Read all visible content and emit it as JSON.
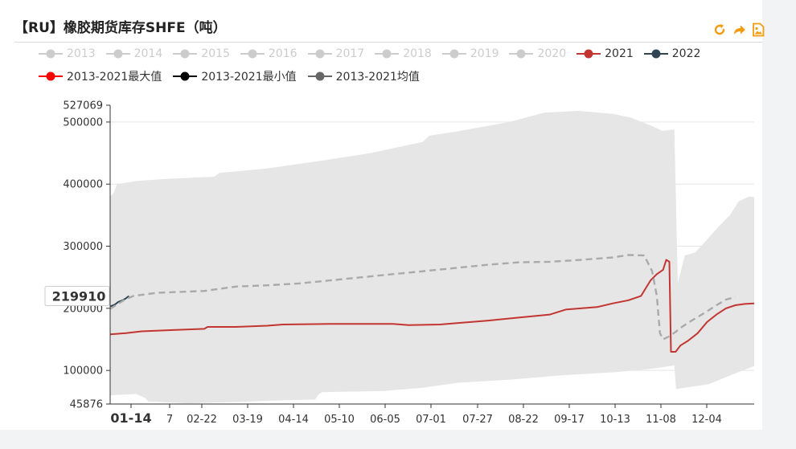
{
  "title": "【RU】橡胶期货库存SHFE（吨）",
  "toolbar": {
    "refresh_icon": "refresh-icon",
    "share_icon": "share-icon",
    "save_icon": "save-image-icon",
    "icon_color": "#f39c12"
  },
  "legend": {
    "years": [
      {
        "label": "2013",
        "color": "#cccccc",
        "active": false
      },
      {
        "label": "2014",
        "color": "#cccccc",
        "active": false
      },
      {
        "label": "2015",
        "color": "#cccccc",
        "active": false
      },
      {
        "label": "2016",
        "color": "#cccccc",
        "active": false
      },
      {
        "label": "2017",
        "color": "#cccccc",
        "active": false
      },
      {
        "label": "2018",
        "color": "#cccccc",
        "active": false
      },
      {
        "label": "2019",
        "color": "#cccccc",
        "active": false
      },
      {
        "label": "2020",
        "color": "#cccccc",
        "active": false
      },
      {
        "label": "2021",
        "color": "#c23531",
        "active": true
      },
      {
        "label": "2022",
        "color": "#2f4554",
        "active": true
      }
    ],
    "stats": [
      {
        "label": "2013-2021最大值",
        "color": "#ff0000"
      },
      {
        "label": "2013-2021最小值",
        "color": "#000000"
      },
      {
        "label": "2013-2021均值",
        "color": "#666666"
      }
    ]
  },
  "chart_data": {
    "type": "area",
    "yaxis": {
      "min": 45876,
      "max": 527069,
      "ticks": [
        100000,
        200000,
        300000,
        400000,
        500000
      ],
      "min_label": "45876",
      "max_label": "527069"
    },
    "xaxis": {
      "ticks": [
        "01-14",
        "7",
        "02-22",
        "03-19",
        "04-14",
        "05-10",
        "06-05",
        "07-01",
        "07-27",
        "08-22",
        "09-17",
        "10-13",
        "11-08",
        "12-04"
      ],
      "highlight_tick": "01-14",
      "range_days": [
        0,
        355
      ]
    },
    "pointer_label": "219910",
    "band_color": "#e6e6e6",
    "band_upper": [
      [
        0,
        380000
      ],
      [
        2,
        386000
      ],
      [
        4,
        400000
      ],
      [
        15,
        405000
      ],
      [
        30,
        408000
      ],
      [
        60,
        412000
      ],
      [
        63,
        418000
      ],
      [
        90,
        425000
      ],
      [
        120,
        437000
      ],
      [
        150,
        450000
      ],
      [
        180,
        468000
      ],
      [
        184,
        478000
      ],
      [
        200,
        485000
      ],
      [
        230,
        500000
      ],
      [
        250,
        515000
      ],
      [
        270,
        518000
      ],
      [
        290,
        513000
      ],
      [
        300,
        507000
      ],
      [
        310,
        496000
      ],
      [
        318,
        486000
      ],
      [
        325,
        488000
      ],
      [
        327,
        240000
      ],
      [
        331,
        285000
      ],
      [
        337,
        290000
      ],
      [
        342,
        305000
      ],
      [
        350,
        330000
      ],
      [
        357,
        350000
      ],
      [
        362,
        372000
      ],
      [
        368,
        380000
      ],
      [
        371,
        379000
      ]
    ],
    "band_lower": [
      [
        0,
        60000
      ],
      [
        15,
        62000
      ],
      [
        20,
        56000
      ],
      [
        22,
        50000
      ],
      [
        45,
        47000
      ],
      [
        70,
        49000
      ],
      [
        100,
        52000
      ],
      [
        118,
        53000
      ],
      [
        120,
        61000
      ],
      [
        122,
        65000
      ],
      [
        158,
        67000
      ],
      [
        180,
        72000
      ],
      [
        200,
        80000
      ],
      [
        230,
        85000
      ],
      [
        260,
        92000
      ],
      [
        290,
        97000
      ],
      [
        310,
        102000
      ],
      [
        325,
        108000
      ],
      [
        326,
        70000
      ],
      [
        345,
        78000
      ],
      [
        360,
        95000
      ],
      [
        371,
        107000
      ]
    ],
    "series": [
      {
        "name": "2021",
        "color": "#c23531",
        "dash": false,
        "points": [
          [
            0,
            158000
          ],
          [
            10,
            160000
          ],
          [
            20,
            163000
          ],
          [
            40,
            165000
          ],
          [
            60,
            167000
          ],
          [
            62,
            170000
          ],
          [
            80,
            170000
          ],
          [
            100,
            172000
          ],
          [
            110,
            174000
          ],
          [
            140,
            175000
          ],
          [
            180,
            175000
          ],
          [
            190,
            173000
          ],
          [
            210,
            174000
          ],
          [
            220,
            176000
          ],
          [
            240,
            180000
          ],
          [
            260,
            185000
          ],
          [
            280,
            190000
          ],
          [
            290,
            198000
          ],
          [
            310,
            202000
          ],
          [
            320,
            208000
          ],
          [
            330,
            213000
          ],
          [
            338,
            220000
          ],
          [
            344,
            245000
          ],
          [
            348,
            255000
          ],
          [
            352,
            262000
          ],
          [
            354,
            278000
          ],
          [
            356,
            275000
          ],
          [
            357,
            130000
          ],
          [
            360,
            130000
          ],
          [
            363,
            140000
          ],
          [
            368,
            148000
          ],
          [
            374,
            160000
          ],
          [
            380,
            178000
          ],
          [
            386,
            190000
          ],
          [
            392,
            200000
          ],
          [
            398,
            205000
          ],
          [
            404,
            207000
          ],
          [
            410,
            208000
          ]
        ]
      },
      {
        "name": "2022",
        "color": "#2f4554",
        "dash": false,
        "points": [
          [
            0,
            203000
          ],
          [
            3,
            206000
          ],
          [
            5,
            210000
          ],
          [
            8,
            213000
          ],
          [
            10,
            216000
          ],
          [
            12,
            219910
          ]
        ]
      },
      {
        "name": "2013-2021均值",
        "color": "#aaaaaa",
        "dash": true,
        "points": [
          [
            0,
            199000
          ],
          [
            5,
            207000
          ],
          [
            10,
            215000
          ],
          [
            15,
            220000
          ],
          [
            30,
            225000
          ],
          [
            60,
            228000
          ],
          [
            80,
            235000
          ],
          [
            100,
            237000
          ],
          [
            120,
            240000
          ],
          [
            140,
            245000
          ],
          [
            160,
            250000
          ],
          [
            180,
            255000
          ],
          [
            200,
            260000
          ],
          [
            220,
            265000
          ],
          [
            240,
            270000
          ],
          [
            260,
            274000
          ],
          [
            280,
            275000
          ],
          [
            300,
            278000
          ],
          [
            320,
            282000
          ],
          [
            330,
            286000
          ],
          [
            340,
            285000
          ],
          [
            345,
            260000
          ],
          [
            348,
            220000
          ],
          [
            350,
            160000
          ],
          [
            352,
            150000
          ],
          [
            356,
            155000
          ],
          [
            360,
            162000
          ],
          [
            364,
            170000
          ],
          [
            370,
            180000
          ],
          [
            378,
            192000
          ],
          [
            386,
            205000
          ],
          [
            392,
            214000
          ],
          [
            398,
            218000
          ]
        ]
      }
    ]
  }
}
